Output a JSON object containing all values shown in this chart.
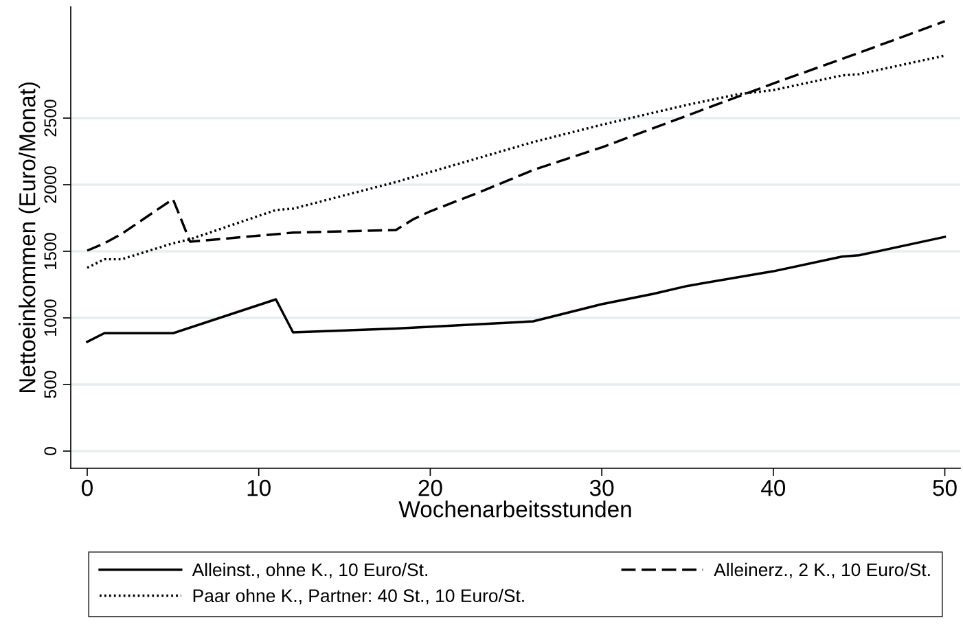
{
  "chart_data": {
    "type": "line",
    "xlabel": "Wochenarbeitsstunden",
    "ylabel": "Nettoeinkommen (Euro/Monat)",
    "xlim": [
      -0.96,
      50.9
    ],
    "xticks": [
      0,
      10,
      20,
      30,
      40,
      50
    ],
    "ylim": [
      -129,
      3335
    ],
    "yticks": [
      0,
      500,
      1000,
      1500,
      2000,
      2500
    ],
    "grid": "y",
    "legend": "bottom",
    "series": [
      {
        "name": "Alleinst., ohne K., 10 Euro/St.",
        "color": "#000000",
        "line_style": "solid",
        "x": [
          0,
          1,
          5,
          11,
          12,
          18,
          26,
          30,
          33,
          35,
          40,
          44,
          45,
          50
        ],
        "values": [
          820,
          885,
          885,
          1139,
          892,
          920,
          974,
          1103,
          1180,
          1240,
          1350,
          1460,
          1470,
          1608
        ]
      },
      {
        "name": "Alleinerz., 2 K., 10 Euro/St.",
        "color": "#000000",
        "line_style": "dashed",
        "x": [
          0,
          1,
          2,
          5,
          6,
          12,
          18,
          19,
          20,
          23,
          26,
          30,
          35,
          40,
          45,
          50
        ],
        "values": [
          1505,
          1560,
          1630,
          1892,
          1572,
          1640,
          1660,
          1740,
          1800,
          1950,
          2110,
          2280,
          2520,
          2760,
          2990,
          3227
        ]
      },
      {
        "name": "Paar ohne K., Partner: 40 St., 10 Euro/St.",
        "color": "#000000",
        "line_style": "dotted",
        "x": [
          0,
          1,
          2,
          5,
          6,
          11,
          12,
          18,
          26,
          30,
          35,
          38,
          40,
          44,
          45,
          50
        ],
        "values": [
          1376,
          1440,
          1440,
          1560,
          1590,
          1810,
          1820,
          2020,
          2320,
          2450,
          2600,
          2680,
          2710,
          2820,
          2830,
          2969
        ]
      }
    ]
  }
}
